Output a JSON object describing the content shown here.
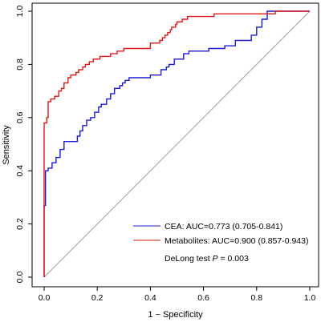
{
  "chart_data": {
    "type": "line",
    "title": "",
    "xlabel": "1 − Specificity",
    "ylabel": "Sensitivity",
    "xlim": [
      0,
      1
    ],
    "ylim": [
      0,
      1
    ],
    "xticks": [
      "0.0",
      "0.2",
      "0.4",
      "0.6",
      "0.8",
      "1.0"
    ],
    "yticks": [
      "0.0",
      "0.2",
      "0.4",
      "0.6",
      "0.8",
      "1.0"
    ],
    "grid": false,
    "legend_position": "bottom-right",
    "reference_line": {
      "from": [
        0,
        0
      ],
      "to": [
        1,
        1
      ],
      "color": "#9e9e9e"
    },
    "series": [
      {
        "name": "CEA: AUC=0.773 (0.705-0.841)",
        "color": "#1a1ad8",
        "x": [
          0.0,
          0.0,
          0.005,
          0.005,
          0.015,
          0.015,
          0.03,
          0.03,
          0.045,
          0.045,
          0.06,
          0.06,
          0.075,
          0.075,
          0.085,
          0.085,
          0.125,
          0.125,
          0.135,
          0.135,
          0.145,
          0.145,
          0.16,
          0.16,
          0.175,
          0.175,
          0.19,
          0.19,
          0.205,
          0.205,
          0.215,
          0.215,
          0.235,
          0.235,
          0.25,
          0.25,
          0.265,
          0.265,
          0.285,
          0.285,
          0.295,
          0.295,
          0.305,
          0.305,
          0.32,
          0.32,
          0.355,
          0.355,
          0.4,
          0.4,
          0.44,
          0.44,
          0.46,
          0.46,
          0.47,
          0.47,
          0.49,
          0.49,
          0.525,
          0.525,
          0.545,
          0.545,
          0.56,
          0.56,
          0.62,
          0.62,
          0.68,
          0.68,
          0.72,
          0.72,
          0.78,
          0.78,
          0.8,
          0.8,
          0.82,
          0.82,
          0.84,
          0.84,
          1.0
        ],
        "y": [
          0.0,
          0.27,
          0.27,
          0.4,
          0.4,
          0.41,
          0.41,
          0.43,
          0.43,
          0.45,
          0.45,
          0.48,
          0.48,
          0.51,
          0.51,
          0.51,
          0.51,
          0.53,
          0.53,
          0.55,
          0.55,
          0.57,
          0.57,
          0.59,
          0.59,
          0.6,
          0.6,
          0.62,
          0.62,
          0.64,
          0.64,
          0.65,
          0.65,
          0.67,
          0.67,
          0.69,
          0.69,
          0.71,
          0.71,
          0.72,
          0.72,
          0.73,
          0.73,
          0.74,
          0.74,
          0.75,
          0.75,
          0.75,
          0.75,
          0.76,
          0.76,
          0.78,
          0.78,
          0.79,
          0.79,
          0.8,
          0.8,
          0.82,
          0.82,
          0.84,
          0.84,
          0.85,
          0.85,
          0.85,
          0.85,
          0.86,
          0.86,
          0.87,
          0.87,
          0.89,
          0.89,
          0.91,
          0.91,
          0.94,
          0.94,
          0.97,
          0.97,
          1.0,
          1.0
        ]
      },
      {
        "name": "Metabolites: AUC=0.900 (0.857-0.943)",
        "color": "#e01818",
        "x": [
          0.0,
          0.0,
          0.01,
          0.01,
          0.015,
          0.015,
          0.025,
          0.025,
          0.04,
          0.04,
          0.055,
          0.055,
          0.065,
          0.065,
          0.075,
          0.075,
          0.09,
          0.09,
          0.1,
          0.1,
          0.12,
          0.12,
          0.13,
          0.13,
          0.145,
          0.145,
          0.155,
          0.155,
          0.17,
          0.17,
          0.185,
          0.185,
          0.21,
          0.21,
          0.25,
          0.25,
          0.275,
          0.275,
          0.3,
          0.3,
          0.33,
          0.33,
          0.4,
          0.4,
          0.435,
          0.435,
          0.445,
          0.445,
          0.455,
          0.455,
          0.465,
          0.465,
          0.475,
          0.475,
          0.48,
          0.48,
          0.495,
          0.495,
          0.5,
          0.5,
          0.52,
          0.52,
          0.54,
          0.54,
          0.55,
          0.55,
          0.64,
          0.64,
          0.66,
          0.66,
          0.87,
          0.87,
          1.0
        ],
        "y": [
          0.0,
          0.58,
          0.58,
          0.6,
          0.6,
          0.66,
          0.66,
          0.67,
          0.67,
          0.68,
          0.68,
          0.7,
          0.7,
          0.71,
          0.71,
          0.73,
          0.73,
          0.75,
          0.75,
          0.76,
          0.76,
          0.77,
          0.77,
          0.78,
          0.78,
          0.79,
          0.79,
          0.8,
          0.8,
          0.81,
          0.81,
          0.82,
          0.82,
          0.83,
          0.83,
          0.84,
          0.84,
          0.85,
          0.85,
          0.86,
          0.86,
          0.86,
          0.86,
          0.88,
          0.88,
          0.89,
          0.89,
          0.9,
          0.9,
          0.91,
          0.91,
          0.92,
          0.92,
          0.93,
          0.93,
          0.94,
          0.94,
          0.95,
          0.95,
          0.96,
          0.96,
          0.97,
          0.97,
          0.98,
          0.98,
          0.98,
          0.98,
          0.99,
          0.99,
          0.99,
          0.99,
          1.0,
          1.0
        ]
      }
    ],
    "annotation": {
      "prefix": "DeLong test ",
      "symbol": "P",
      "suffix": " = 0.003"
    }
  }
}
